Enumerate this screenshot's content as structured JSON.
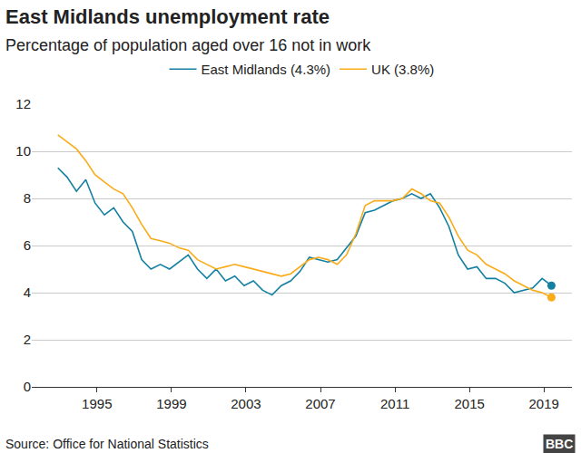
{
  "chart_data": {
    "type": "line",
    "title": "East Midlands unemployment rate",
    "subtitle": "Percentage of population aged over 16 not in work",
    "source": "Source: Office for National Statistics",
    "logo": "BBC",
    "x": [
      1992.9,
      1993.4,
      1993.9,
      1994.4,
      1994.9,
      1995.4,
      1995.9,
      1996.4,
      1996.9,
      1997.4,
      1997.9,
      1998.4,
      1998.9,
      1999.4,
      1999.9,
      2000.4,
      2000.9,
      2001.4,
      2001.9,
      2002.4,
      2002.9,
      2003.4,
      2003.9,
      2004.4,
      2004.9,
      2005.4,
      2005.9,
      2006.4,
      2006.9,
      2007.4,
      2007.9,
      2008.4,
      2008.9,
      2009.4,
      2009.9,
      2010.4,
      2010.9,
      2011.4,
      2011.9,
      2012.4,
      2012.9,
      2013.4,
      2013.9,
      2014.4,
      2014.9,
      2015.4,
      2015.9,
      2016.4,
      2016.9,
      2017.4,
      2017.9,
      2018.4,
      2018.9,
      2019.4
    ],
    "series": [
      {
        "name": "East Midlands (4.3%)",
        "color": "#1380a1",
        "values": [
          9.3,
          8.9,
          8.3,
          8.8,
          7.8,
          7.3,
          7.6,
          7.0,
          6.6,
          5.4,
          5.0,
          5.2,
          5.0,
          5.3,
          5.6,
          5.0,
          4.6,
          5.0,
          4.5,
          4.7,
          4.3,
          4.5,
          4.1,
          3.9,
          4.3,
          4.5,
          4.9,
          5.5,
          5.4,
          5.3,
          5.4,
          5.9,
          6.4,
          7.4,
          7.5,
          7.7,
          7.9,
          8.0,
          8.2,
          8.0,
          8.2,
          7.6,
          6.8,
          5.6,
          5.0,
          5.1,
          4.6,
          4.6,
          4.4,
          4.0,
          4.1,
          4.2,
          4.6,
          4.3
        ]
      },
      {
        "name": "UK (3.8%)",
        "color": "#faab18",
        "values": [
          10.7,
          10.4,
          10.1,
          9.6,
          9.0,
          8.7,
          8.4,
          8.2,
          7.6,
          6.9,
          6.3,
          6.2,
          6.1,
          5.9,
          5.8,
          5.4,
          5.2,
          5.0,
          5.1,
          5.2,
          5.1,
          5.0,
          4.9,
          4.8,
          4.7,
          4.8,
          5.1,
          5.4,
          5.5,
          5.4,
          5.2,
          5.6,
          6.5,
          7.7,
          7.9,
          7.9,
          7.9,
          8.0,
          8.4,
          8.2,
          7.9,
          7.8,
          7.2,
          6.4,
          5.8,
          5.6,
          5.2,
          5.0,
          4.8,
          4.5,
          4.3,
          4.1,
          4.0,
          3.8
        ]
      }
    ],
    "xlim": [
      1991.5,
      2020.5
    ],
    "xticks": [
      1995,
      1999,
      2003,
      2007,
      2011,
      2015,
      2019
    ],
    "ylim": [
      0,
      12
    ],
    "yticks": [
      0,
      2,
      4,
      6,
      8,
      10,
      12
    ],
    "grid": true,
    "legend": "top",
    "marker": "end"
  }
}
